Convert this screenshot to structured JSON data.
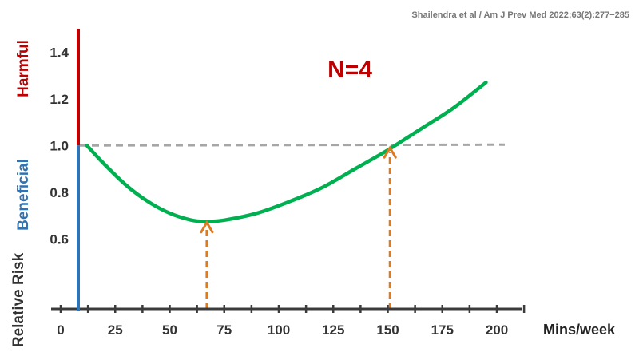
{
  "citation": "Shailendra et al / Am J Prev Med 2022;63(2):277−285",
  "colors": {
    "curve": "#00b050",
    "reference": "#a6a6a6",
    "arrow": "#e07a1f",
    "harmful": "#c00000",
    "beneficial": "#2e74b5",
    "annotation": "#c00000",
    "axis": "#3b3b3b"
  },
  "chart_data": {
    "type": "line",
    "title": "",
    "xlabel": "Mins/week",
    "ylabel": "Relative Risk",
    "annotation": "N=4",
    "region_labels": {
      "harmful": "Harmful",
      "beneficial": "Beneficial"
    },
    "xlim": [
      0,
      200
    ],
    "ylim": [
      0.3,
      1.5
    ],
    "x_ticks": [
      0,
      25,
      50,
      75,
      100,
      125,
      150,
      175,
      200
    ],
    "y_ticks": [
      0.6,
      0.8,
      1.0,
      1.2,
      1.4
    ],
    "grid": false,
    "reference_line": {
      "y": 1.0,
      "style": "dashed"
    },
    "series": [
      {
        "x": [
          12,
          20,
          30,
          40,
          50,
          60,
          67,
          75,
          90,
          105,
          120,
          135,
          150,
          165,
          180,
          195
        ],
        "y": [
          1.0,
          0.92,
          0.83,
          0.76,
          0.71,
          0.68,
          0.675,
          0.68,
          0.71,
          0.76,
          0.82,
          0.9,
          0.98,
          1.07,
          1.16,
          1.27
        ]
      }
    ],
    "arrows": [
      {
        "x": 67,
        "y_from": 0.3,
        "y_to": 0.67
      },
      {
        "x": 151,
        "y_from": 0.3,
        "y_to": 0.99
      }
    ]
  }
}
